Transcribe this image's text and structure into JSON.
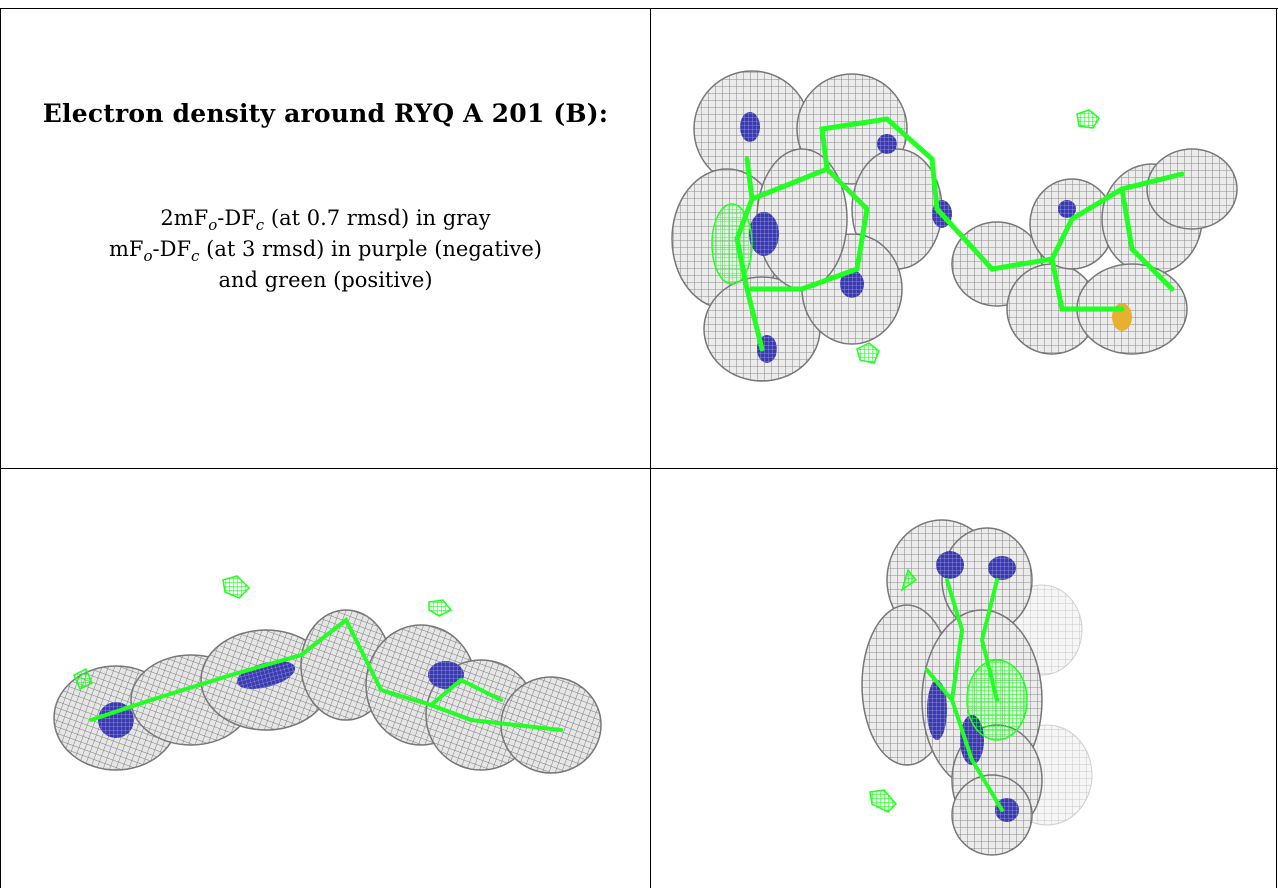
{
  "title": "Electron density around RYQ A 201 (B):",
  "legend": [
    {
      "prefix": "2mF",
      "sub1": "o",
      "mid": "-DF",
      "sub2": "c",
      "suffix": " (at 0.7 rmsd) in gray"
    },
    {
      "prefix": "mF",
      "sub1": "o",
      "mid": "-DF",
      "sub2": "c",
      "suffix": " (at 3 rmsd) in purple (negative)"
    },
    {
      "text": "and green (positive)"
    }
  ],
  "colors": {
    "mesh": "#8c8c8c",
    "mesh_light": "#c8c8c8",
    "positive": "#22ff22",
    "negative": "#3a3ab0",
    "sulfur": "#e8b030",
    "border": "#000000"
  },
  "panels": [
    {
      "name": "view-top-right",
      "kind": "electron-density-rendering"
    },
    {
      "name": "view-bottom-left",
      "kind": "electron-density-rendering"
    },
    {
      "name": "view-bottom-right",
      "kind": "electron-density-rendering"
    }
  ]
}
